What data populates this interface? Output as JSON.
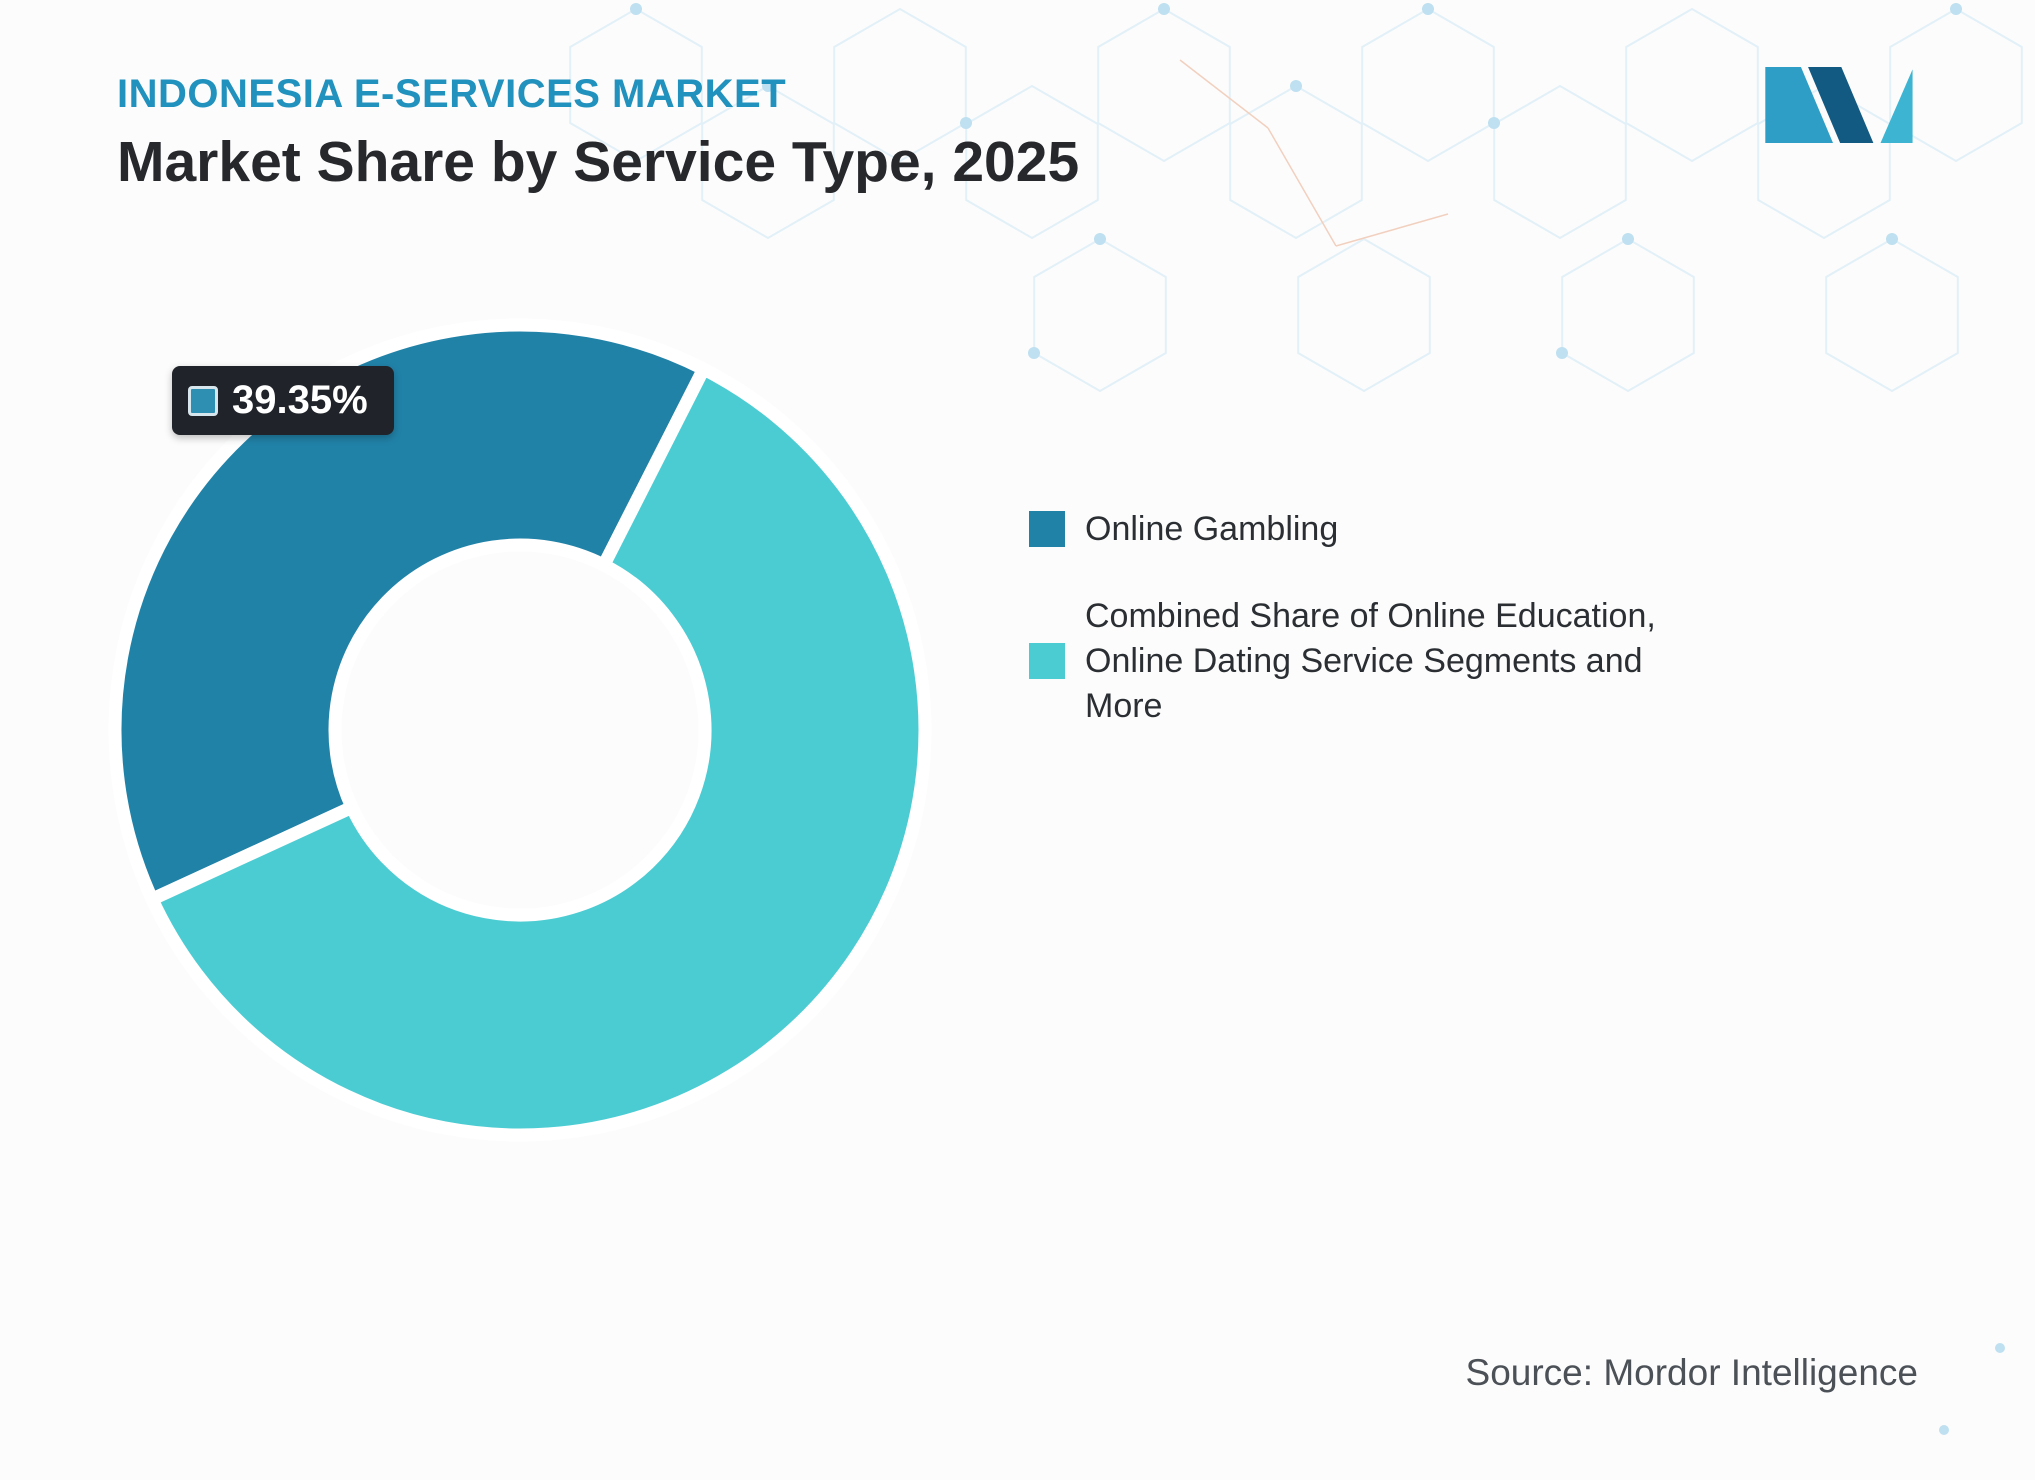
{
  "header": {
    "kicker": "INDONESIA E-SERVICES MARKET",
    "title": "Market Share by Service Type, 2025"
  },
  "chart_data": {
    "type": "pie",
    "donut": true,
    "title": "Market Share by Service Type, 2025",
    "units": "%",
    "start_angle_deg": 245.3,
    "legend_position": "right",
    "slices": [
      {
        "label": "Online Gambling",
        "value": 39.35,
        "color": "#2182a8",
        "data_label": "39.35%"
      },
      {
        "label": "Combined Share of Online Education, Online Dating Service Segments and More",
        "value": 60.65,
        "color": "#4bccd3",
        "data_label": ""
      }
    ]
  },
  "annotation": {
    "value_label": "39.35%",
    "swatch_color": "#2e8fb3"
  },
  "legend": {
    "items": [
      {
        "label": "Online Gambling",
        "color": "#2182a8"
      },
      {
        "label": "Combined Share of Online Education, Online Dating Service Segments and More",
        "color": "#4bccd3"
      }
    ]
  },
  "source": {
    "text": "Source: Mordor Intelligence"
  }
}
